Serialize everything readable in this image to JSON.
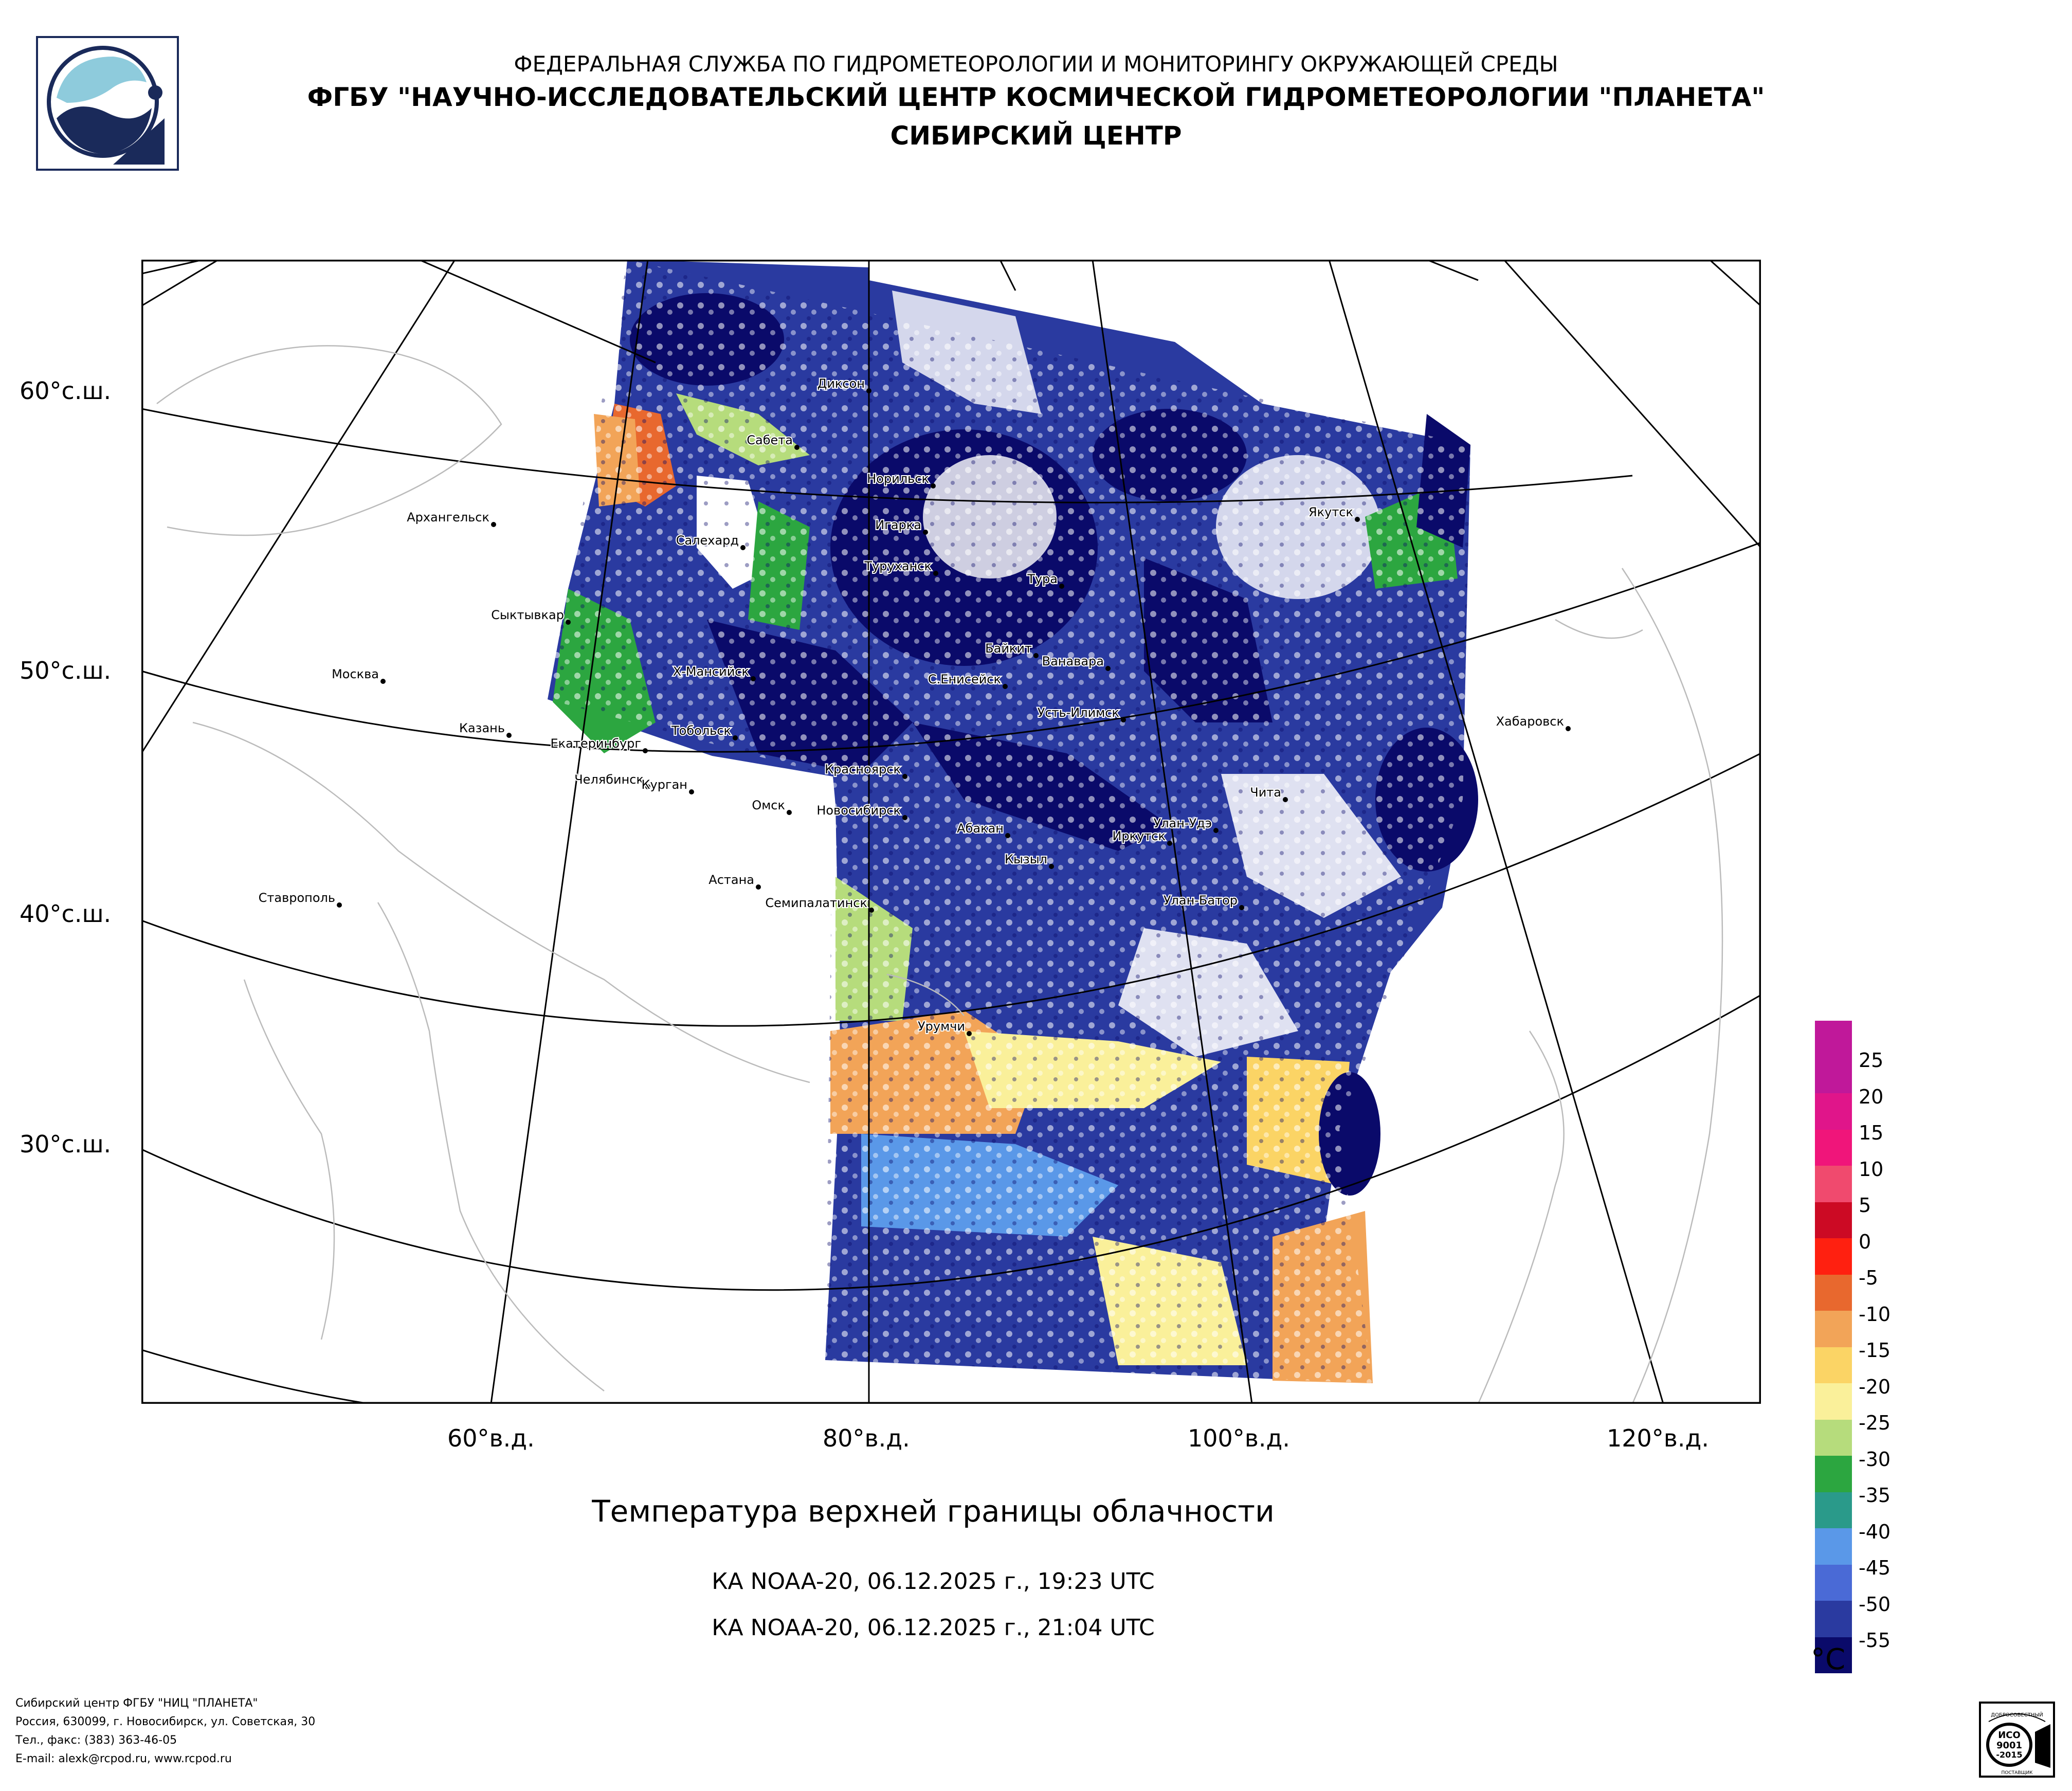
{
  "header": {
    "line1": "ФЕДЕРАЛЬНАЯ СЛУЖБА ПО ГИДРОМЕТЕОРОЛОГИИ И МОНИТОРИНГУ ОКРУЖАЮЩЕЙ СРЕДЫ",
    "line2": "ФГБУ \"НАУЧНО-ИССЛЕДОВАТЕЛЬСКИЙ ЦЕНТР КОСМИЧЕСКОЙ ГИДРОМЕТЕОРОЛОГИИ \"ПЛАНЕТА\"",
    "line3": "СИБИРСКИЙ ЦЕНТР"
  },
  "map": {
    "lat_labels": [
      "60°с.ш.",
      "50°с.ш.",
      "40°с.ш.",
      "30°с.ш."
    ],
    "lon_labels": [
      "60°в.д.",
      "80°в.д.",
      "100°в.д.",
      "120°в.д."
    ],
    "cities": [
      {
        "name": "Диксон"
      },
      {
        "name": "Сабета"
      },
      {
        "name": "Норильск"
      },
      {
        "name": "Игарка"
      },
      {
        "name": "Туруханск"
      },
      {
        "name": "Салехард"
      },
      {
        "name": "Архангельск"
      },
      {
        "name": "Якутск"
      },
      {
        "name": "Тура"
      },
      {
        "name": "Сыктывкар"
      },
      {
        "name": "Байкит"
      },
      {
        "name": "Ванавара"
      },
      {
        "name": "Москва"
      },
      {
        "name": "Х-Мансийск"
      },
      {
        "name": "С.Енисейск"
      },
      {
        "name": "Усть-Илимск"
      },
      {
        "name": "Хабаровск"
      },
      {
        "name": "Казань"
      },
      {
        "name": "Тобольск"
      },
      {
        "name": "Екатеринбург"
      },
      {
        "name": "Красноярск"
      },
      {
        "name": "Челябинск"
      },
      {
        "name": "Курган"
      },
      {
        "name": "Чита"
      },
      {
        "name": "Омск"
      },
      {
        "name": "Новосибирск"
      },
      {
        "name": "Абакан"
      },
      {
        "name": "Улан-Удэ"
      },
      {
        "name": "Иркутск"
      },
      {
        "name": "Кызыл"
      },
      {
        "name": "Астана"
      },
      {
        "name": "Ставрополь"
      },
      {
        "name": "Семипалатинск"
      },
      {
        "name": "Улан-Батор"
      },
      {
        "name": "Урумчи"
      }
    ]
  },
  "title": "Температура верхней границы облачности",
  "passes": [
    "КА NOAA-20, 06.12.2025 г., 19:23 UTC",
    "КА NOAA-20, 06.12.2025 г., 21:04 UTC"
  ],
  "legend": {
    "unit": "°C",
    "ticks": [
      "25",
      "20",
      "15",
      "10",
      "5",
      "0",
      "-5",
      "-10",
      "-15",
      "-20",
      "-25",
      "-30",
      "-35",
      "-40",
      "-45",
      "-50",
      "-55"
    ],
    "colors": [
      "#c0189a",
      "#e0158a",
      "#f0157a",
      "#f04a6e",
      "#cc0a24",
      "#ff2010",
      "#e8682e",
      "#f2a458",
      "#fbd465",
      "#faf09a",
      "#b6dc7c",
      "#2ca640",
      "#2a9a8a",
      "#5a98e8",
      "#4a6ad6",
      "#2a3aa0",
      "#0a0a6a"
    ]
  },
  "footer": {
    "line1": "Сибирский центр ФГБУ \"НИЦ \"ПЛАНЕТА\"",
    "line2": "Россия, 630099, г. Новосибирск, ул. Советская, 30",
    "line3": "Тел., факс: (383) 363-46-05",
    "line4": "E-mail: alexk@rcpod.ru, www.rcpod.ru"
  },
  "cert": {
    "l1": "ДОБРОСОВЕСТНЫЙ",
    "l2": "ИСО",
    "l3": "9001",
    "l4": "-2015",
    "l5": "ПОСТАВЩИК"
  }
}
